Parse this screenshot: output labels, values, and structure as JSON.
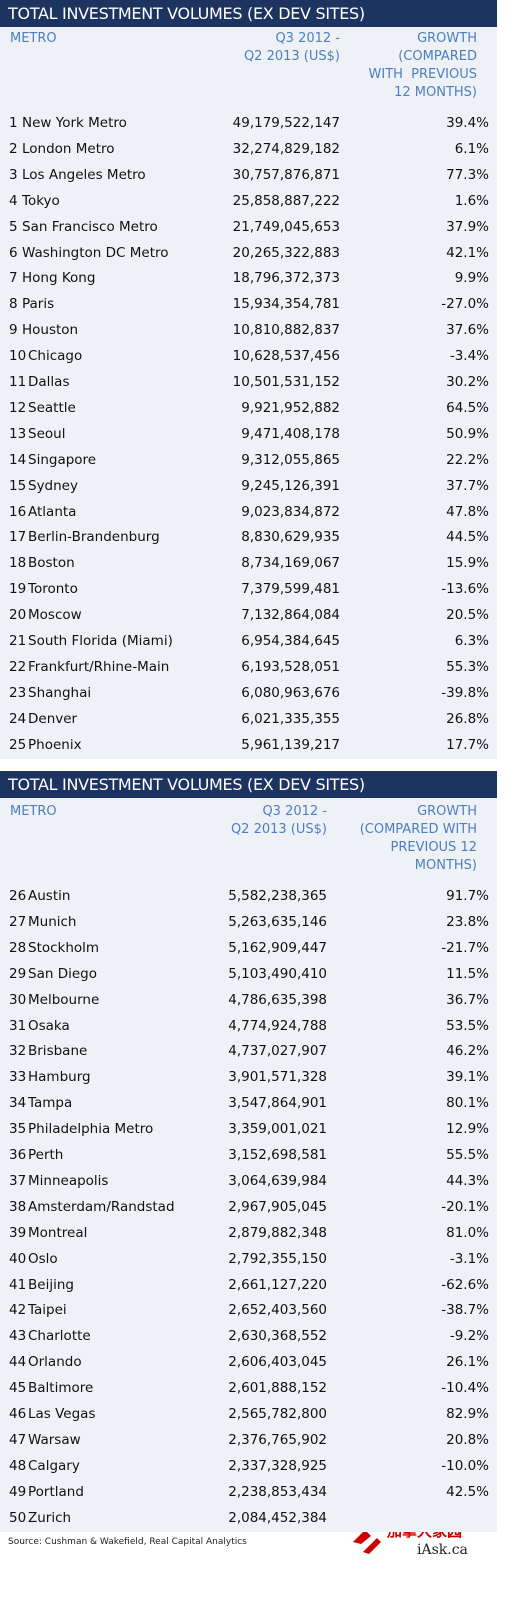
{
  "tables": [
    {
      "title": "TOTAL INVESTMENT VOLUMES (EX DEV SITES)",
      "header": [
        [
          "METRO"
        ],
        [
          "Q3 2012 -",
          "Q2 2013 (US$)"
        ],
        [
          "GROWTH",
          "(COMPARED",
          "WITH  PREVIOUS",
          "12 MONTHS)"
        ]
      ],
      "rows": [
        [
          "1",
          "New York Metro",
          "49,179,522,147",
          "39.4%"
        ],
        [
          "2",
          "London Metro",
          "32,274,829,182",
          "6.1%"
        ],
        [
          "3",
          "Los Angeles Metro",
          "30,757,876,871",
          "77.3%"
        ],
        [
          "4",
          "Tokyo",
          "25,858,887,222",
          "1.6%"
        ],
        [
          "5",
          "San Francisco Metro",
          "21,749,045,653",
          "37.9%"
        ],
        [
          "6",
          "Washington DC Metro",
          "20,265,322,883",
          "42.1%"
        ],
        [
          "7",
          "Hong Kong",
          "18,796,372,373",
          "9.9%"
        ],
        [
          "8",
          "Paris",
          "15,934,354,781",
          "-27.0%"
        ],
        [
          "9",
          "Houston",
          "10,810,882,837",
          "37.6%"
        ],
        [
          "10",
          "Chicago",
          "10,628,537,456",
          "-3.4%"
        ],
        [
          "11",
          "Dallas",
          "10,501,531,152",
          "30.2%"
        ],
        [
          "12",
          "Seattle",
          "9,921,952,882",
          "64.5%"
        ],
        [
          "13",
          "Seoul",
          "9,471,408,178",
          "50.9%"
        ],
        [
          "14",
          "Singapore",
          "9,312,055,865",
          "22.2%"
        ],
        [
          "15",
          "Sydney",
          "9,245,126,391",
          "37.7%"
        ],
        [
          "16",
          "Atlanta",
          "9,023,834,872",
          "47.8%"
        ],
        [
          "17",
          "Berlin-Brandenburg",
          "8,830,629,935",
          "44.5%"
        ],
        [
          "18",
          "Boston",
          "8,734,169,067",
          "15.9%"
        ],
        [
          "19",
          "Toronto",
          "7,379,599,481",
          "-13.6%"
        ],
        [
          "20",
          "Moscow",
          "7,132,864,084",
          "20.5%"
        ],
        [
          "21",
          "South Florida (Miami)",
          "6,954,384,645",
          "6.3%"
        ],
        [
          "22",
          "Frankfurt/Rhine-Main",
          "6,193,528,051",
          "55.3%"
        ],
        [
          "23",
          "Shanghai",
          "6,080,963,676",
          "-39.8%"
        ],
        [
          "24",
          "Denver",
          "6,021,335,355",
          "26.8%"
        ],
        [
          "25",
          "Phoenix",
          "5,961,139,217",
          "17.7%"
        ]
      ]
    },
    {
      "title": "TOTAL INVESTMENT VOLUMES (EX DEV SITES)",
      "header": [
        [
          "METRO"
        ],
        [
          "Q3 2012 -",
          "Q2 2013 (US$)"
        ],
        [
          "GROWTH",
          "(COMPARED WITH",
          "PREVIOUS 12",
          "MONTHS)"
        ]
      ],
      "rows": [
        [
          "26",
          "Austin",
          "5,582,238,365",
          "91.7%"
        ],
        [
          "27",
          "Munich",
          "5,263,635,146",
          "23.8%"
        ],
        [
          "28",
          "Stockholm",
          "5,162,909,447",
          "-21.7%"
        ],
        [
          "29",
          "San Diego",
          "5,103,490,410",
          "11.5%"
        ],
        [
          "30",
          "Melbourne",
          "4,786,635,398",
          "36.7%"
        ],
        [
          "31",
          "Osaka",
          "4,774,924,788",
          "53.5%"
        ],
        [
          "32",
          "Brisbane",
          "4,737,027,907",
          "46.2%"
        ],
        [
          "33",
          "Hamburg",
          "3,901,571,328",
          "39.1%"
        ],
        [
          "34",
          "Tampa",
          "3,547,864,901",
          "80.1%"
        ],
        [
          "35",
          "Philadelphia Metro",
          "3,359,001,021",
          "12.9%"
        ],
        [
          "36",
          "Perth",
          "3,152,698,581",
          "55.5%"
        ],
        [
          "37",
          "Minneapolis",
          "3,064,639,984",
          "44.3%"
        ],
        [
          "38",
          "Amsterdam/Randstad",
          "2,967,905,045",
          "-20.1%"
        ],
        [
          "39",
          "Montreal",
          "2,879,882,348",
          "81.0%"
        ],
        [
          "40",
          "Oslo",
          "2,792,355,150",
          "-3.1%"
        ],
        [
          "41",
          "Beijing",
          "2,661,127,220",
          "-62.6%"
        ],
        [
          "42",
          "Taipei",
          "2,652,403,560",
          "-38.7%"
        ],
        [
          "43",
          "Charlotte",
          "2,630,368,552",
          "-9.2%"
        ],
        [
          "44",
          "Orlando",
          "2,606,403,045",
          "26.1%"
        ],
        [
          "45",
          "Baltimore",
          "2,601,888,152",
          "-10.4%"
        ],
        [
          "46",
          "Las Vegas",
          "2,565,782,800",
          "82.9%"
        ],
        [
          "47",
          "Warsaw",
          "2,376,765,902",
          "20.8%"
        ],
        [
          "48",
          "Calgary",
          "2,337,328,925",
          "-10.0%"
        ],
        [
          "49",
          "Portland",
          "2,238,853,434",
          "42.5%"
        ],
        [
          "50",
          "Zurich",
          "2,084,452,384"
        ]
      ]
    }
  ],
  "source": "Source:  Cushman & Wakefield, Real Capital Analytics",
  "watermark": {
    "title": "加拿大家园",
    "site": "iAsk.ca"
  }
}
